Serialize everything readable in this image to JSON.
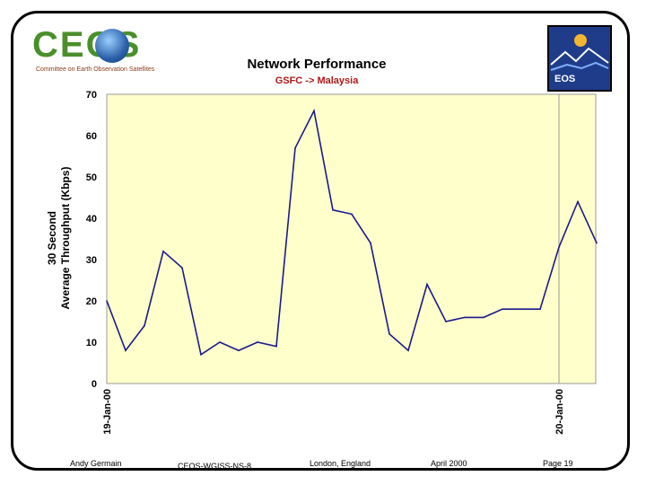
{
  "logos": {
    "ceos_text": "CEOS",
    "ceos_subtitle": "Committee on Earth Observation Satellites",
    "eos_text": "EOS"
  },
  "chart_data": {
    "type": "line",
    "title": "Network Performance",
    "subtitle": "GSFC -> Malaysia",
    "ylabel_line1": "30 Second",
    "ylabel_line2": "Average Throughput (Kbps)",
    "ylim": [
      0,
      70
    ],
    "yticks": [
      0,
      10,
      20,
      30,
      40,
      50,
      60,
      70
    ],
    "xtick_labels": [
      {
        "label": "19-Jan-00",
        "index": 0
      },
      {
        "label": "20-Jan-00",
        "index": 24
      }
    ],
    "grid": false,
    "background": "#ffffcc",
    "line_color": "#1a1a8c",
    "series": [
      {
        "values": [
          20,
          8,
          14,
          32,
          28,
          7,
          10,
          8,
          10,
          9,
          57,
          66,
          42,
          41,
          34,
          12,
          8,
          24,
          15,
          16,
          16,
          18,
          18,
          18,
          33,
          44,
          34
        ]
      }
    ]
  },
  "footer": {
    "author": "Andy Germain",
    "doc_id": "CEOS-WGISS-NS-8",
    "location": "London, England",
    "date": "April 2000",
    "page": "Page 19"
  }
}
